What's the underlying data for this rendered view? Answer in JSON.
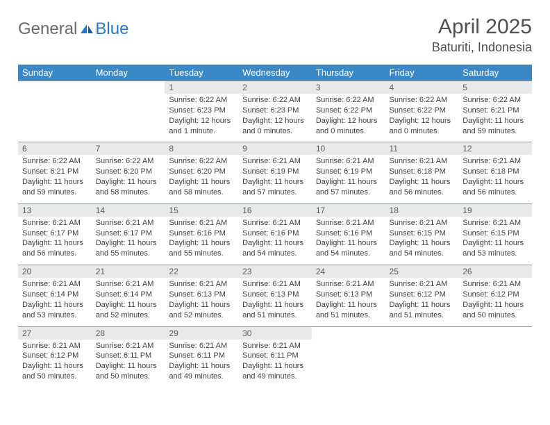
{
  "logo": {
    "general": "General",
    "blue": "Blue"
  },
  "title": "April 2025",
  "location": "Baturiti, Indonesia",
  "colors": {
    "header_bg": "#3b88c6",
    "header_text": "#ffffff",
    "daynum_bg": "#e8e9ea",
    "daynum_border": "#8a97a0",
    "body_text": "#414141",
    "title_text": "#505050",
    "logo_gray": "#6a6a6a",
    "logo_blue": "#2b78c2",
    "background": "#ffffff"
  },
  "fonts": {
    "title_size": 30,
    "location_size": 18,
    "dow_size": 13,
    "daynum_size": 12,
    "detail_size": 11
  },
  "days_of_week": [
    "Sunday",
    "Monday",
    "Tuesday",
    "Wednesday",
    "Thursday",
    "Friday",
    "Saturday"
  ],
  "weeks": [
    [
      null,
      null,
      {
        "n": "1",
        "sr": "Sunrise: 6:22 AM",
        "ss": "Sunset: 6:23 PM",
        "dl1": "Daylight: 12 hours",
        "dl2": "and 1 minute."
      },
      {
        "n": "2",
        "sr": "Sunrise: 6:22 AM",
        "ss": "Sunset: 6:23 PM",
        "dl1": "Daylight: 12 hours",
        "dl2": "and 0 minutes."
      },
      {
        "n": "3",
        "sr": "Sunrise: 6:22 AM",
        "ss": "Sunset: 6:22 PM",
        "dl1": "Daylight: 12 hours",
        "dl2": "and 0 minutes."
      },
      {
        "n": "4",
        "sr": "Sunrise: 6:22 AM",
        "ss": "Sunset: 6:22 PM",
        "dl1": "Daylight: 12 hours",
        "dl2": "and 0 minutes."
      },
      {
        "n": "5",
        "sr": "Sunrise: 6:22 AM",
        "ss": "Sunset: 6:21 PM",
        "dl1": "Daylight: 11 hours",
        "dl2": "and 59 minutes."
      }
    ],
    [
      {
        "n": "6",
        "sr": "Sunrise: 6:22 AM",
        "ss": "Sunset: 6:21 PM",
        "dl1": "Daylight: 11 hours",
        "dl2": "and 59 minutes."
      },
      {
        "n": "7",
        "sr": "Sunrise: 6:22 AM",
        "ss": "Sunset: 6:20 PM",
        "dl1": "Daylight: 11 hours",
        "dl2": "and 58 minutes."
      },
      {
        "n": "8",
        "sr": "Sunrise: 6:22 AM",
        "ss": "Sunset: 6:20 PM",
        "dl1": "Daylight: 11 hours",
        "dl2": "and 58 minutes."
      },
      {
        "n": "9",
        "sr": "Sunrise: 6:21 AM",
        "ss": "Sunset: 6:19 PM",
        "dl1": "Daylight: 11 hours",
        "dl2": "and 57 minutes."
      },
      {
        "n": "10",
        "sr": "Sunrise: 6:21 AM",
        "ss": "Sunset: 6:19 PM",
        "dl1": "Daylight: 11 hours",
        "dl2": "and 57 minutes."
      },
      {
        "n": "11",
        "sr": "Sunrise: 6:21 AM",
        "ss": "Sunset: 6:18 PM",
        "dl1": "Daylight: 11 hours",
        "dl2": "and 56 minutes."
      },
      {
        "n": "12",
        "sr": "Sunrise: 6:21 AM",
        "ss": "Sunset: 6:18 PM",
        "dl1": "Daylight: 11 hours",
        "dl2": "and 56 minutes."
      }
    ],
    [
      {
        "n": "13",
        "sr": "Sunrise: 6:21 AM",
        "ss": "Sunset: 6:17 PM",
        "dl1": "Daylight: 11 hours",
        "dl2": "and 56 minutes."
      },
      {
        "n": "14",
        "sr": "Sunrise: 6:21 AM",
        "ss": "Sunset: 6:17 PM",
        "dl1": "Daylight: 11 hours",
        "dl2": "and 55 minutes."
      },
      {
        "n": "15",
        "sr": "Sunrise: 6:21 AM",
        "ss": "Sunset: 6:16 PM",
        "dl1": "Daylight: 11 hours",
        "dl2": "and 55 minutes."
      },
      {
        "n": "16",
        "sr": "Sunrise: 6:21 AM",
        "ss": "Sunset: 6:16 PM",
        "dl1": "Daylight: 11 hours",
        "dl2": "and 54 minutes."
      },
      {
        "n": "17",
        "sr": "Sunrise: 6:21 AM",
        "ss": "Sunset: 6:16 PM",
        "dl1": "Daylight: 11 hours",
        "dl2": "and 54 minutes."
      },
      {
        "n": "18",
        "sr": "Sunrise: 6:21 AM",
        "ss": "Sunset: 6:15 PM",
        "dl1": "Daylight: 11 hours",
        "dl2": "and 54 minutes."
      },
      {
        "n": "19",
        "sr": "Sunrise: 6:21 AM",
        "ss": "Sunset: 6:15 PM",
        "dl1": "Daylight: 11 hours",
        "dl2": "and 53 minutes."
      }
    ],
    [
      {
        "n": "20",
        "sr": "Sunrise: 6:21 AM",
        "ss": "Sunset: 6:14 PM",
        "dl1": "Daylight: 11 hours",
        "dl2": "and 53 minutes."
      },
      {
        "n": "21",
        "sr": "Sunrise: 6:21 AM",
        "ss": "Sunset: 6:14 PM",
        "dl1": "Daylight: 11 hours",
        "dl2": "and 52 minutes."
      },
      {
        "n": "22",
        "sr": "Sunrise: 6:21 AM",
        "ss": "Sunset: 6:13 PM",
        "dl1": "Daylight: 11 hours",
        "dl2": "and 52 minutes."
      },
      {
        "n": "23",
        "sr": "Sunrise: 6:21 AM",
        "ss": "Sunset: 6:13 PM",
        "dl1": "Daylight: 11 hours",
        "dl2": "and 51 minutes."
      },
      {
        "n": "24",
        "sr": "Sunrise: 6:21 AM",
        "ss": "Sunset: 6:13 PM",
        "dl1": "Daylight: 11 hours",
        "dl2": "and 51 minutes."
      },
      {
        "n": "25",
        "sr": "Sunrise: 6:21 AM",
        "ss": "Sunset: 6:12 PM",
        "dl1": "Daylight: 11 hours",
        "dl2": "and 51 minutes."
      },
      {
        "n": "26",
        "sr": "Sunrise: 6:21 AM",
        "ss": "Sunset: 6:12 PM",
        "dl1": "Daylight: 11 hours",
        "dl2": "and 50 minutes."
      }
    ],
    [
      {
        "n": "27",
        "sr": "Sunrise: 6:21 AM",
        "ss": "Sunset: 6:12 PM",
        "dl1": "Daylight: 11 hours",
        "dl2": "and 50 minutes."
      },
      {
        "n": "28",
        "sr": "Sunrise: 6:21 AM",
        "ss": "Sunset: 6:11 PM",
        "dl1": "Daylight: 11 hours",
        "dl2": "and 50 minutes."
      },
      {
        "n": "29",
        "sr": "Sunrise: 6:21 AM",
        "ss": "Sunset: 6:11 PM",
        "dl1": "Daylight: 11 hours",
        "dl2": "and 49 minutes."
      },
      {
        "n": "30",
        "sr": "Sunrise: 6:21 AM",
        "ss": "Sunset: 6:11 PM",
        "dl1": "Daylight: 11 hours",
        "dl2": "and 49 minutes."
      },
      null,
      null,
      null
    ]
  ]
}
